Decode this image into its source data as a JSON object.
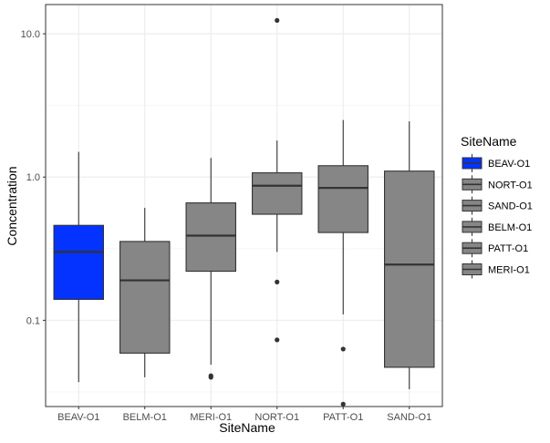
{
  "chart_data": {
    "type": "box",
    "xlabel": "SiteName",
    "ylabel": "Concentration",
    "y_scale": "log10",
    "ylim": [
      0.025,
      16
    ],
    "y_ticks": [
      0.1,
      1.0,
      10.0
    ],
    "y_tick_labels": [
      "0.1",
      "1.0",
      "10.0"
    ],
    "grid": true,
    "legend": {
      "title": "SiteName",
      "position": "right",
      "entries": [
        {
          "label": "BEAV-O1",
          "color": "#0433ff"
        },
        {
          "label": "NORT-O1",
          "color": "#868686"
        },
        {
          "label": "SAND-O1",
          "color": "#868686"
        },
        {
          "label": "BELM-O1",
          "color": "#868686"
        },
        {
          "label": "PATT-O1",
          "color": "#868686"
        },
        {
          "label": "MERI-O1",
          "color": "#868686"
        }
      ]
    },
    "categories": [
      "BEAV-O1",
      "BELM-O1",
      "MERI-O1",
      "NORT-O1",
      "PATT-O1",
      "SAND-O1"
    ],
    "boxes": [
      {
        "name": "BEAV-O1",
        "color": "#0433ff",
        "whisker_low": 0.037,
        "q1": 0.14,
        "median": 0.3,
        "q3": 0.46,
        "whisker_high": 1.5,
        "outliers": []
      },
      {
        "name": "BELM-O1",
        "color": "#868686",
        "whisker_low": 0.04,
        "q1": 0.059,
        "median": 0.19,
        "q3": 0.355,
        "whisker_high": 0.61,
        "outliers": []
      },
      {
        "name": "MERI-O1",
        "color": "#868686",
        "whisker_low": 0.049,
        "q1": 0.22,
        "median": 0.39,
        "q3": 0.66,
        "whisker_high": 1.36,
        "outliers": [
          0.041,
          0.04
        ]
      },
      {
        "name": "NORT-O1",
        "color": "#868686",
        "whisker_low": 0.3,
        "q1": 0.55,
        "median": 0.87,
        "q3": 1.07,
        "whisker_high": 1.8,
        "outliers": [
          12.4,
          0.185,
          0.073
        ]
      },
      {
        "name": "PATT-O1",
        "color": "#868686",
        "whisker_low": 0.11,
        "q1": 0.41,
        "median": 0.84,
        "q3": 1.2,
        "whisker_high": 2.5,
        "outliers": [
          0.063,
          0.026
        ]
      },
      {
        "name": "SAND-O1",
        "color": "#868686",
        "whisker_low": 0.033,
        "q1": 0.047,
        "median": 0.245,
        "q3": 1.1,
        "whisker_high": 2.45,
        "outliers": []
      }
    ]
  }
}
